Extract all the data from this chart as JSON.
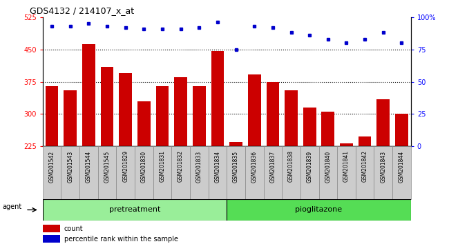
{
  "title": "GDS4132 / 214107_x_at",
  "samples": [
    "GSM201542",
    "GSM201543",
    "GSM201544",
    "GSM201545",
    "GSM201829",
    "GSM201830",
    "GSM201831",
    "GSM201832",
    "GSM201833",
    "GSM201834",
    "GSM201835",
    "GSM201836",
    "GSM201837",
    "GSM201838",
    "GSM201839",
    "GSM201840",
    "GSM201841",
    "GSM201842",
    "GSM201843",
    "GSM201844"
  ],
  "counts": [
    365,
    355,
    462,
    410,
    395,
    330,
    365,
    385,
    365,
    447,
    235,
    392,
    375,
    355,
    315,
    305,
    232,
    248,
    335,
    300
  ],
  "percentile": [
    93,
    93,
    95,
    93,
    92,
    91,
    91,
    91,
    92,
    96,
    75,
    93,
    92,
    88,
    86,
    83,
    80,
    83,
    88,
    80
  ],
  "pretreatment_count": 10,
  "pioglitazone_count": 10,
  "ylim_left": [
    225,
    525
  ],
  "ylim_right": [
    0,
    100
  ],
  "yticks_left": [
    225,
    300,
    375,
    450,
    525
  ],
  "yticks_right": [
    0,
    25,
    50,
    75,
    100
  ],
  "bar_color": "#cc0000",
  "dot_color": "#0000cc",
  "pretreatment_color": "#99ee99",
  "pioglitazone_color": "#55dd55",
  "cell_bg_color": "#cccccc",
  "cell_border_color": "#888888",
  "legend_count_label": "count",
  "legend_pct_label": "percentile rank within the sample"
}
